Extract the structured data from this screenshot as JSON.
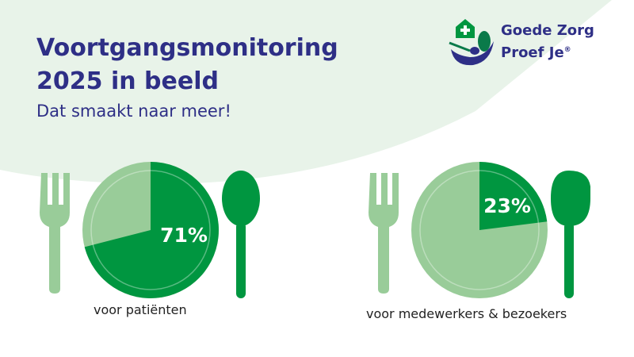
{
  "title_line1": "Voortgangsmonitoring",
  "title_line2": "2025 in beeld",
  "subtitle": "Dat smaakt naar meer!",
  "logo": {
    "line1": "Goede Zorg",
    "line2": "Proef Je",
    "mark": "®"
  },
  "colors": {
    "dark_green": "#009640",
    "light_green": "#99cc99",
    "navy": "#2e2f86",
    "bg_green": "#e8f3e9"
  },
  "chart_data": [
    {
      "type": "pie",
      "label": "voor patiënten",
      "value_text": "71%",
      "values": [
        71,
        29
      ],
      "highlight": "dark"
    },
    {
      "type": "pie",
      "label": "voor medewerkers & bezoekers",
      "value_text": "23%",
      "values": [
        23,
        77
      ],
      "highlight": "dark"
    }
  ]
}
